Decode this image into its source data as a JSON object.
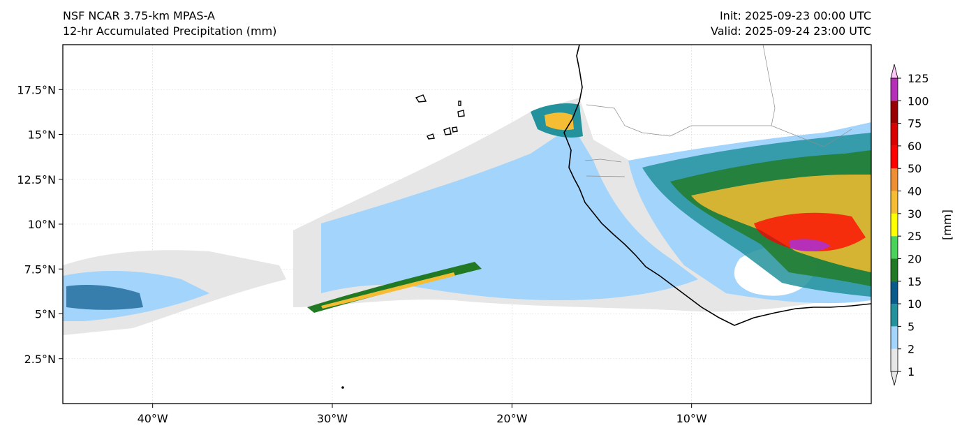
{
  "header": {
    "model": "NSF NCAR 3.75-km MPAS-A",
    "field": "12-hr Accumulated Precipitation (mm)",
    "init": "Init: 2025-09-23 00:00 UTC",
    "valid": "Valid: 2025-09-24 23:00 UTC"
  },
  "map": {
    "lon_range": [
      -45,
      0
    ],
    "lat_range": [
      0,
      20
    ],
    "lon_ticks": [
      {
        "value": -40,
        "label": "40°W"
      },
      {
        "value": -30,
        "label": "30°W"
      },
      {
        "value": -20,
        "label": "20°W"
      },
      {
        "value": -10,
        "label": "10°W"
      }
    ],
    "lat_ticks": [
      {
        "value": 2.5,
        "label": "2.5°N"
      },
      {
        "value": 5,
        "label": "5°N"
      },
      {
        "value": 7.5,
        "label": "7.5°N"
      },
      {
        "value": 10,
        "label": "10°N"
      },
      {
        "value": 12.5,
        "label": "12.5°N"
      },
      {
        "value": 15,
        "label": "15°N"
      },
      {
        "value": 17.5,
        "label": "17.5°N"
      }
    ],
    "gridlines": true
  },
  "colorbar": {
    "unit_label": "[mm]",
    "levels": [
      "1",
      "2",
      "5",
      "10",
      "15",
      "20",
      "25",
      "30",
      "40",
      "50",
      "60",
      "75",
      "100",
      "125"
    ],
    "colors": [
      "#e6e6e6",
      "#a3d4fb",
      "#23929c",
      "#0a5a8c",
      "#217a23",
      "#4ad35a",
      "#ffff00",
      "#f4bd33",
      "#ee8f33",
      "#ff0000",
      "#db0000",
      "#9b0000",
      "#b52fb8",
      "#fdc8f7"
    ],
    "extend": "both"
  }
}
